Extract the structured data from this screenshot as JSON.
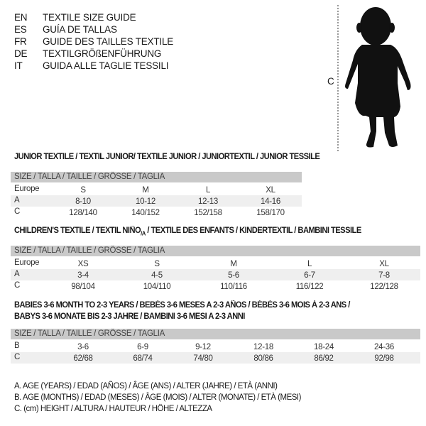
{
  "languages": [
    {
      "code": "EN",
      "text": "TEXTILE SIZE GUIDE"
    },
    {
      "code": "ES",
      "text": "GUÍA DE TALLAS"
    },
    {
      "code": "FR",
      "text": "GUIDE DES TAILLES TEXTILE"
    },
    {
      "code": "DE",
      "text": "TEXTILGRÖßENFÜHRUNG"
    },
    {
      "code": "IT",
      "text": "GUIDA ALLE TAGLIE TESSILI"
    }
  ],
  "figure": {
    "measure_label": "C"
  },
  "size_header": "SIZE / TALLA / TAILLE / GRÖSSE / TAGLIA",
  "junior": {
    "title": "JUNIOR TEXTILE / TEXTIL JUNIOR/ TEXTILE JUNIOR / JUNIORTEXTIL / JUNIOR TESSILE",
    "rows": [
      {
        "label": "Europe",
        "values": [
          "S",
          "M",
          "L",
          "XL"
        ]
      },
      {
        "label": "A",
        "values": [
          "8-10",
          "10-12",
          "12-13",
          "14-16"
        ]
      },
      {
        "label": "C",
        "values": [
          "128/140",
          "140/152",
          "152/158",
          "158/170"
        ]
      }
    ]
  },
  "children": {
    "title_pre": "CHILDREN'S TEXTILE / TEXTIL NIÑO",
    "title_sub": "/A",
    "title_post": " / TEXTILE DES ENFANTS / KINDERTEXTIL / BAMBINI TESSILE",
    "rows": [
      {
        "label": "Europe",
        "values": [
          "XS",
          "S",
          "M",
          "L",
          "XL"
        ]
      },
      {
        "label": "A",
        "values": [
          "3-4",
          "4-5",
          "5-6",
          "6-7",
          "7-8"
        ]
      },
      {
        "label": "C",
        "values": [
          "98/104",
          "104/110",
          "110/116",
          "116/122",
          "122/128"
        ]
      }
    ]
  },
  "babies": {
    "title_line1": "BABIES 3-6 MONTH TO 2-3 YEARS / BEBÉS 3-6 MESES A 2-3 AÑOS / BÉBÉS 3-6 MOIS À 2-3 ANS /",
    "title_line2": "BABYS 3-6 MONATE BIS 2-3 JAHRE / BAMBINI 3-6 MESI A 2-3 ANNI",
    "rows": [
      {
        "label": "B",
        "values": [
          "3-6",
          "6-9",
          "9-12",
          "12-18",
          "18-24",
          "24-36"
        ]
      },
      {
        "label": "C",
        "values": [
          "62/68",
          "68/74",
          "74/80",
          "80/86",
          "86/92",
          "92/98"
        ]
      }
    ]
  },
  "legend": [
    "A. AGE (YEARS) / EDAD (AÑOS) / ÂGE (ANS) / ALTER (JAHRE) / ETÀ (ANNI)",
    "B. AGE (MONTHS) / EDAD (MESES) / ÂGE (MOIS) / ALTER (MONATE) / ETÀ (MESI)",
    "C. (cm) HEIGHT / ALTURA / HAUTEUR / HÖHE / ALTEZZA"
  ]
}
